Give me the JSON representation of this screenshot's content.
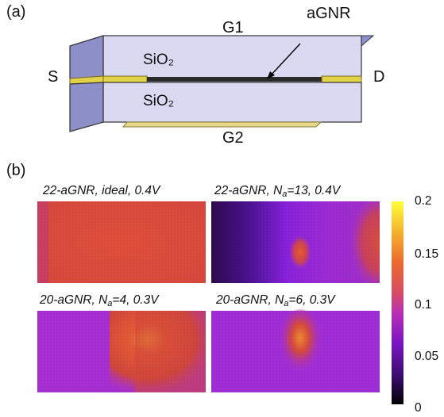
{
  "panel_a": {
    "label": "(a)",
    "gate_top": "G1",
    "gate_bottom": "G2",
    "source": "S",
    "drain": "D",
    "channel": "aGNR",
    "oxide_top": "SiO₂",
    "oxide_bottom": "SiO₂"
  },
  "panel_b": {
    "label": "(b)",
    "maps": [
      {
        "title_main": "22-aGNR, ideal, 0.4V",
        "title_pre": "",
        "title_sub": "",
        "title_post": ""
      },
      {
        "title_main": "",
        "title_pre": "22-aGNR, N",
        "title_sub": "a",
        "title_post": "=13, 0.4V"
      },
      {
        "title_main": "",
        "title_pre": "20-aGNR, N",
        "title_sub": "a",
        "title_post": "=4, 0.3V"
      },
      {
        "title_main": "",
        "title_pre": "20-aGNR, N",
        "title_sub": "a",
        "title_post": "=6, 0.3V"
      }
    ],
    "colorbar": {
      "ticks": [
        "0.2",
        "0.15",
        "0.1",
        "0.05",
        "0"
      ],
      "min": 0,
      "max": 0.2,
      "colors": [
        "#000000",
        "#3a0d6e",
        "#8a17c9",
        "#c43ab0",
        "#e55a55",
        "#f5922e",
        "#fbd33a",
        "#ffff40"
      ]
    }
  }
}
